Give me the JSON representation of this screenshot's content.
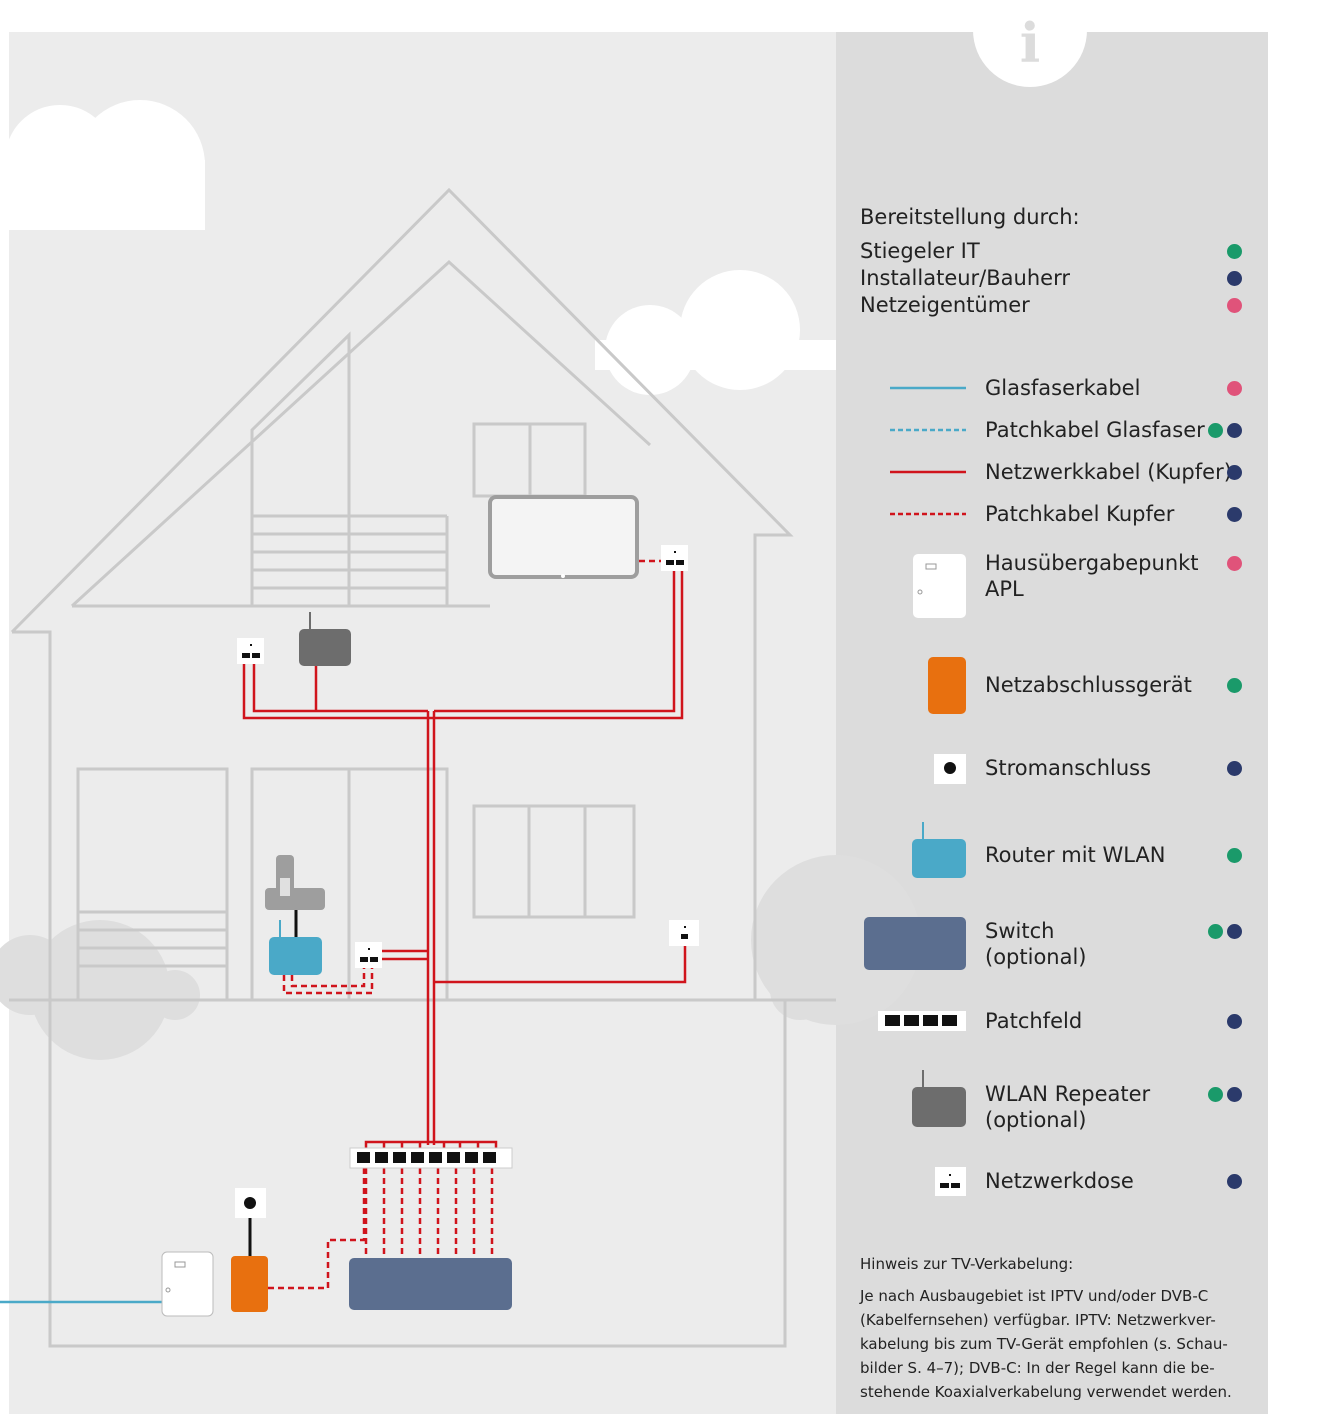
{
  "providers": {
    "title": "Bereitstellung durch:",
    "items": [
      {
        "label": "Stiegeler IT",
        "color": "#1a9a6a"
      },
      {
        "label": "Installateur/Bauherr",
        "color": "#2b3a6b"
      },
      {
        "label": "Netzeigentümer",
        "color": "#e0537a"
      }
    ]
  },
  "legend": [
    {
      "lines": [
        "Glasfaserkabel"
      ],
      "by": [
        2
      ]
    },
    {
      "lines": [
        "Patchkabel Glasfaser"
      ],
      "by": [
        0,
        1
      ]
    },
    {
      "lines": [
        "Netzwerkkabel (Kupfer)"
      ],
      "by": [
        1
      ]
    },
    {
      "lines": [
        "Patchkabel Kupfer"
      ],
      "by": [
        1
      ]
    },
    {
      "lines": [
        "Hausübergabepunkt",
        "APL"
      ],
      "by": [
        2
      ]
    },
    {
      "lines": [
        "Netzabschlussgerät"
      ],
      "by": [
        0
      ]
    },
    {
      "lines": [
        "Stromanschluss"
      ],
      "by": [
        1
      ]
    },
    {
      "lines": [
        "Router mit WLAN"
      ],
      "by": [
        0
      ]
    },
    {
      "lines": [
        "Switch",
        "(optional)"
      ],
      "by": [
        0,
        1
      ]
    },
    {
      "lines": [
        "Patchfeld"
      ],
      "by": [
        1
      ]
    },
    {
      "lines": [
        "WLAN Repeater",
        "(optional)"
      ],
      "by": [
        0,
        1
      ]
    },
    {
      "lines": [
        "Netzwerkdose"
      ],
      "by": [
        1
      ]
    }
  ],
  "note": {
    "title": "Hinweis zur TV-Verkabelung:",
    "lines": [
      "Je nach Ausbaugebiet ist IPTV und/oder DVB-C",
      "(Kabelfernsehen) verfügbar. IPTV: Netzwerkver-",
      "kabelung bis zum TV-Gerät empfohlen (s. Schau-",
      "bilder S. 4–7); DVB-C: In der Regel kann die be-",
      "stehende Koaxialverkabelung verwendet werden."
    ]
  }
}
